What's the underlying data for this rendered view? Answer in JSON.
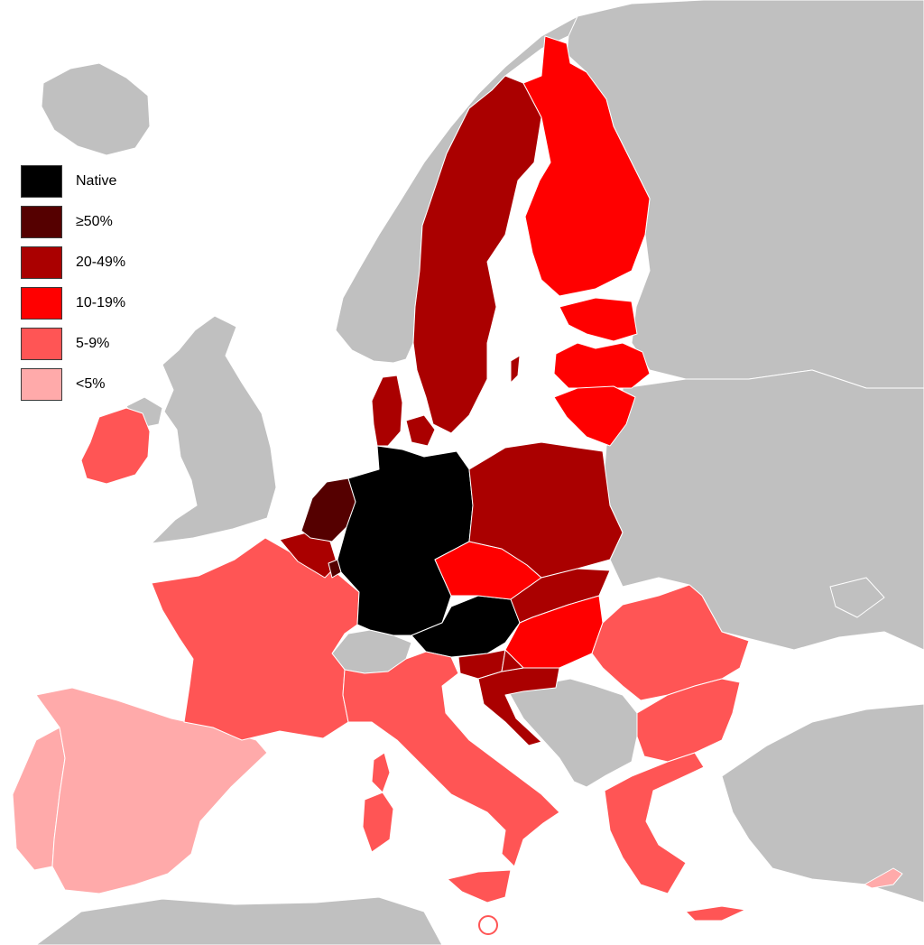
{
  "colors": {
    "background": "#ffffff",
    "non_eu": "#c0c0c0",
    "border": "#ffffff",
    "native": "#000000",
    "ge50": "#550000",
    "p20_49": "#aa0000",
    "p10_19": "#ff0000",
    "p5_9": "#ff5555",
    "lt5": "#ffaaaa"
  },
  "legend": {
    "items": [
      {
        "label": "Native",
        "color": "#000000"
      },
      {
        "label": "≥50%",
        "color": "#550000"
      },
      {
        "label": "20-49%",
        "color": "#aa0000"
      },
      {
        "label": "10-19%",
        "color": "#ff0000"
      },
      {
        "label": "5-9%",
        "color": "#ff5555"
      },
      {
        "label": "<5%",
        "color": "#ffaaaa"
      }
    ]
  },
  "regions": [
    {
      "name": "Germany",
      "category": "Native"
    },
    {
      "name": "Austria",
      "category": "Native"
    },
    {
      "name": "Netherlands",
      "category": "≥50%"
    },
    {
      "name": "Luxembourg",
      "category": "≥50%"
    },
    {
      "name": "Belgium",
      "category": "20-49%"
    },
    {
      "name": "Denmark",
      "category": "20-49%"
    },
    {
      "name": "Sweden",
      "category": "20-49%"
    },
    {
      "name": "Poland",
      "category": "20-49%"
    },
    {
      "name": "Slovakia",
      "category": "20-49%"
    },
    {
      "name": "Slovenia",
      "category": "20-49%"
    },
    {
      "name": "Croatia",
      "category": "20-49%"
    },
    {
      "name": "Finland",
      "category": "10-19%"
    },
    {
      "name": "Estonia",
      "category": "10-19%"
    },
    {
      "name": "Latvia",
      "category": "10-19%"
    },
    {
      "name": "Lithuania",
      "category": "10-19%"
    },
    {
      "name": "Czech Republic",
      "category": "10-19%"
    },
    {
      "name": "Hungary",
      "category": "10-19%"
    },
    {
      "name": "Ireland",
      "category": "5-9%"
    },
    {
      "name": "France",
      "category": "5-9%"
    },
    {
      "name": "Italy",
      "category": "5-9%"
    },
    {
      "name": "Romania",
      "category": "5-9%"
    },
    {
      "name": "Bulgaria",
      "category": "5-9%"
    },
    {
      "name": "Greece",
      "category": "5-9%"
    },
    {
      "name": "Malta",
      "category": "5-9%"
    },
    {
      "name": "Spain",
      "category": "<5%"
    },
    {
      "name": "Portugal",
      "category": "<5%"
    },
    {
      "name": "Cyprus",
      "category": "<5%"
    }
  ]
}
